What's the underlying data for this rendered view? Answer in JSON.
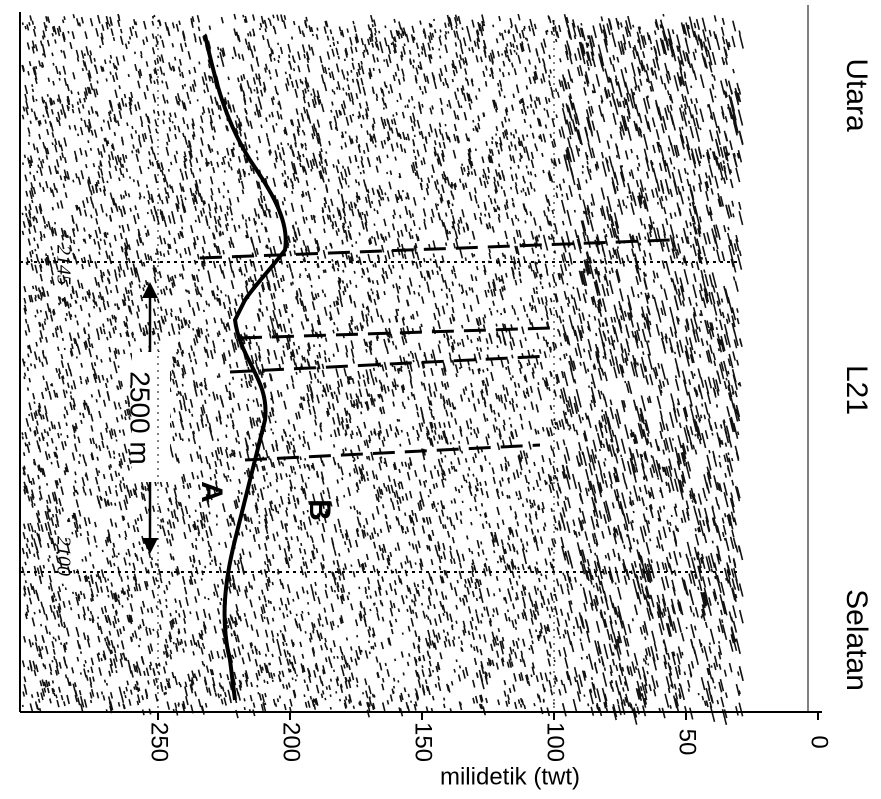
{
  "axis": {
    "label": "milidetik (twt)",
    "ticks": [
      250,
      200,
      150,
      100,
      50,
      0
    ]
  },
  "side_labels": [
    "Utara",
    "L21",
    "Selatan"
  ],
  "annotations": {
    "scale": "2500 m",
    "horizon_a": "A",
    "horizon_b": "B",
    "shot_top": "2145",
    "shot_bottom": "2100"
  }
}
